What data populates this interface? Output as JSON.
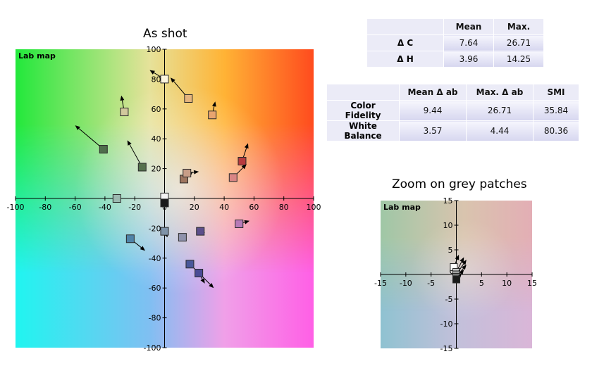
{
  "chart_data": [
    {
      "type": "scatter",
      "title": "As shot",
      "legend_text": "Lab map",
      "xlim": [
        -100,
        100
      ],
      "ylim": [
        -100,
        100
      ],
      "x_ticks": [
        -100,
        -80,
        -60,
        -40,
        -20,
        0,
        20,
        40,
        60,
        80,
        100
      ],
      "y_ticks": [
        -100,
        -80,
        -60,
        -40,
        -20,
        20,
        40,
        60,
        80,
        100
      ],
      "patches": [
        {
          "a": -41,
          "b": 33,
          "ta": -60,
          "tb": 49,
          "color": "#4f6e4c"
        },
        {
          "a": -15,
          "b": 21,
          "ta": -25,
          "tb": 39,
          "color": "#56714e"
        },
        {
          "a": -27,
          "b": 58,
          "ta": -29,
          "tb": 69,
          "color": "#d2c99d"
        },
        {
          "a": 0,
          "b": 80,
          "ta": -10,
          "tb": 86,
          "color": "#fbf4dd"
        },
        {
          "a": 16,
          "b": 67,
          "ta": 4,
          "tb": 81,
          "color": "#e6b57e"
        },
        {
          "a": 32,
          "b": 56,
          "ta": 34,
          "tb": 65,
          "color": "#e8a46f"
        },
        {
          "a": 52,
          "b": 25,
          "ta": 56,
          "tb": 37,
          "color": "#b73a3f"
        },
        {
          "a": 46,
          "b": 14,
          "ta": 55,
          "tb": 23,
          "color": "#d98585"
        },
        {
          "a": 13,
          "b": 13,
          "ta": 19,
          "tb": 18,
          "color": "#9f7660"
        },
        {
          "a": 15,
          "b": 17,
          "ta": 23,
          "tb": 18,
          "color": "#c89d87"
        },
        {
          "a": -32,
          "b": 0,
          "ta": -32,
          "tb": 0,
          "color": "#9cb9b0"
        },
        {
          "a": 0,
          "b": 1,
          "ta": 0,
          "tb": 1,
          "color": "#f4f4f4"
        },
        {
          "a": 0,
          "b": -3,
          "ta": 0,
          "tb": -3,
          "color": "#1a1a1a"
        },
        {
          "a": 0,
          "b": -22,
          "ta": 2,
          "tb": -26,
          "color": "#7f93a8"
        },
        {
          "a": 12,
          "b": -26,
          "ta": 12,
          "tb": -26,
          "color": "#8f92ac"
        },
        {
          "a": 24,
          "b": -22,
          "ta": 27,
          "tb": -23,
          "color": "#5c4f8b"
        },
        {
          "a": 50,
          "b": -17,
          "ta": 57,
          "tb": -15,
          "color": "#b77ab8"
        },
        {
          "a": -23,
          "b": -27,
          "ta": -13,
          "tb": -35,
          "color": "#4f83a8"
        },
        {
          "a": 17,
          "b": -44,
          "ta": 33,
          "tb": -60,
          "color": "#48589a"
        },
        {
          "a": 23,
          "b": -50,
          "ta": 27,
          "tb": -57,
          "color": "#4a4c96"
        }
      ]
    },
    {
      "type": "scatter",
      "title": "Zoom on grey patches",
      "legend_text": "Lab map",
      "xlim": [
        -15,
        15
      ],
      "ylim": [
        -15,
        15
      ],
      "x_ticks": [
        -15,
        -10,
        -5,
        5,
        10,
        15
      ],
      "y_ticks": [
        -15,
        -10,
        -5,
        5,
        10,
        15
      ],
      "zero_label": "0",
      "patches": [
        {
          "a": -0.5,
          "b": 1.5,
          "ta": 0.5,
          "tb": 4,
          "color": "#ffffff"
        },
        {
          "a": 0,
          "b": 0.5,
          "ta": 1.5,
          "tb": 3.5,
          "color": "#c8c8c8"
        },
        {
          "a": 0,
          "b": 0,
          "ta": 2,
          "tb": 3,
          "color": "#a0a0a0"
        },
        {
          "a": 0,
          "b": -0.5,
          "ta": 2,
          "tb": 2,
          "color": "#787878"
        },
        {
          "a": 0,
          "b": -1,
          "ta": 1.5,
          "tb": 1,
          "color": "#505050"
        },
        {
          "a": 0,
          "b": -1,
          "ta": 1,
          "tb": 0,
          "color": "#1a1a1a"
        }
      ]
    }
  ],
  "table1": {
    "headers": [
      "",
      "Mean",
      "Max."
    ],
    "rows": [
      {
        "label": "Δ C",
        "values": [
          "7.64",
          "26.71"
        ]
      },
      {
        "label": "Δ H",
        "values": [
          "3.96",
          "14.25"
        ]
      }
    ]
  },
  "table2": {
    "headers": [
      "",
      "Mean Δ ab",
      "Max. Δ ab",
      "SMI"
    ],
    "rows": [
      {
        "label": "Color Fidelity",
        "values": [
          "9.44",
          "26.71",
          "35.84"
        ]
      },
      {
        "label": "White Balance",
        "values": [
          "3.57",
          "4.44",
          "80.36"
        ]
      }
    ]
  }
}
